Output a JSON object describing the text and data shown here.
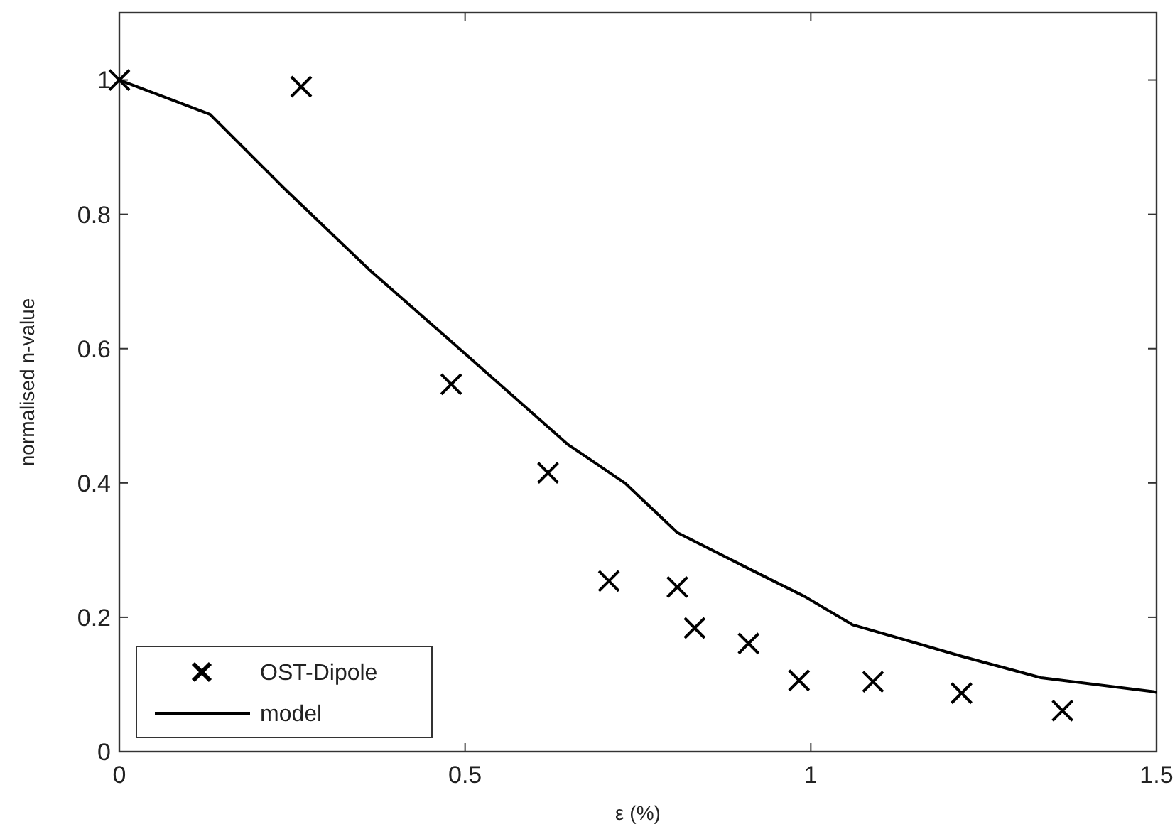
{
  "chart_data": {
    "type": "scatter",
    "xlabel": "ε (%)",
    "ylabel": "normalised n-value",
    "xlim": [
      0,
      1.5
    ],
    "ylim": [
      0,
      1.1
    ],
    "xticks": [
      0,
      0.5,
      1,
      1.5
    ],
    "yticks": [
      0,
      0.2,
      0.4,
      0.6,
      0.8,
      1
    ],
    "legend": "bottom left",
    "grid": false,
    "series": [
      {
        "name": "OST-Dipole",
        "marker": "cross",
        "color": "#000000",
        "x": [
          0,
          0.263,
          0.48,
          0.62,
          0.708,
          0.807,
          0.832,
          0.91,
          0.983,
          1.09,
          1.218,
          1.364
        ],
        "values": [
          1,
          0.99,
          0.547,
          0.415,
          0.254,
          0.245,
          0.184,
          0.161,
          0.106,
          0.104,
          0.087,
          0.061
        ]
      },
      {
        "name": "model",
        "type": "line",
        "marker": "none",
        "line_style": "solid",
        "color": "#000000",
        "x": [
          0,
          0.131,
          0.238,
          0.361,
          0.485,
          0.649,
          0.731,
          0.807,
          0.909,
          0.991,
          1.06,
          1.218,
          1.333,
          1.497,
          1.5
        ],
        "values": [
          1,
          0.949,
          0.839,
          0.718,
          0.606,
          0.457,
          0.4,
          0.326,
          0.273,
          0.231,
          0.189,
          0.142,
          0.11,
          0.089,
          0.088
        ]
      }
    ]
  }
}
